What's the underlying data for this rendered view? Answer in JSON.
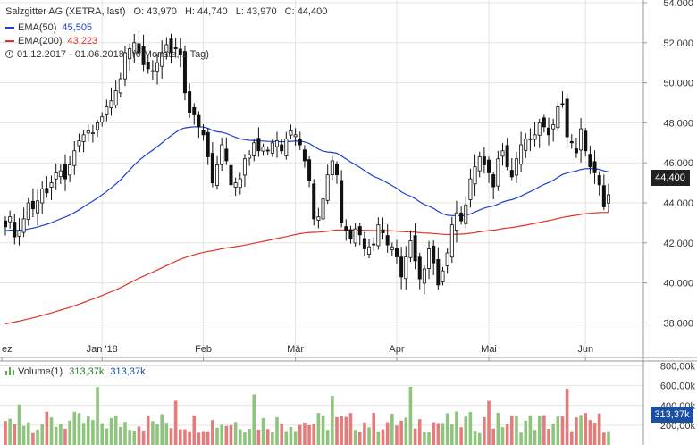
{
  "header": {
    "title": "Salzgitter AG (XETRA, last)",
    "open": "O: 43,970",
    "high": "H: 44,740",
    "low": "L: 43,970",
    "close": "C: 44,400",
    "ema50_label": "EMA(50)",
    "ema50_value": "45,505",
    "ema200_label": "EMA(200)",
    "ema200_value": "43,223",
    "range": "01.12.2017 - 01.06.2018",
    "period": "(6 Monate, 1 Tag)"
  },
  "volume_legend": {
    "label": "Volume(1)",
    "value1": "313,37k",
    "value2": "313,37k"
  },
  "tags": {
    "last_price": "44,400",
    "last_volume": "313,37k"
  },
  "colors": {
    "up": "#ffffff",
    "down": "#111111",
    "ema50": "#1f3fcc",
    "ema200": "#e0332a",
    "vol_up": "#8fc47e",
    "vol_down": "#e57c7c",
    "grid": "#e4e4e4",
    "tag_price": "#222222",
    "tag_volume": "#1d4fa0"
  },
  "chart_data": {
    "type": "candlestick",
    "x_ticks": [
      "ez",
      "Jan '18",
      "Feb",
      "Mär",
      "Apr",
      "Mai",
      "Jun"
    ],
    "y_ticks": [
      "54,000",
      "52,000",
      "50,000",
      "48,000",
      "46,000",
      "44,000",
      "42,000",
      "40,000",
      "38,000"
    ],
    "ylim": [
      36.5,
      54
    ],
    "volume_ticks": [
      "800,00k",
      "600,00k",
      "400,00k",
      "200,00k"
    ],
    "volume_ylim": [
      0,
      850
    ],
    "close": [
      42.8,
      43.3,
      42.3,
      42.6,
      43.2,
      44.0,
      43.7,
      44.1,
      44.7,
      44.5,
      45.0,
      45.5,
      45.6,
      45.2,
      45.9,
      46.6,
      47.1,
      47.4,
      47.6,
      47.5,
      48.0,
      48.3,
      48.8,
      49.1,
      49.6,
      50.2,
      51.5,
      51.7,
      52.0,
      51.5,
      50.9,
      50.7,
      50.6,
      51.0,
      51.5,
      51.9,
      51.5,
      51.7,
      51.4,
      49.5,
      48.5,
      48.4,
      47.8,
      47.4,
      46.3,
      45.0,
      45.9,
      46.9,
      46.1,
      44.9,
      45.0,
      45.2,
      46.2,
      46.4,
      47.0,
      46.6,
      46.8,
      46.6,
      47.0,
      47.1,
      46.6,
      47.2,
      47.6,
      47.4,
      46.9,
      46.1,
      45.1,
      43.2,
      43.3,
      44.2,
      45.4,
      46.1,
      45.4,
      43.0,
      42.6,
      42.2,
      42.7,
      42.4,
      41.7,
      41.8,
      41.9,
      42.9,
      42.5,
      41.9,
      41.8,
      41.3,
      40.3,
      41.3,
      42.1,
      41.1,
      40.2,
      40.7,
      41.7,
      41.0,
      39.9,
      40.6,
      41.5,
      42.9,
      43.5,
      43.1,
      43.9,
      45.2,
      45.8,
      46.3,
      45.9,
      45.5,
      44.8,
      46.2,
      46.6,
      45.8,
      45.3,
      46.2,
      46.9,
      47.2,
      47.2,
      47.4,
      48.0,
      47.8,
      47.4,
      47.9,
      48.8,
      48.9,
      47.3,
      47.0,
      46.5,
      47.7,
      46.6,
      45.8,
      45.5,
      44.9,
      43.8,
      44.4
    ]
  }
}
